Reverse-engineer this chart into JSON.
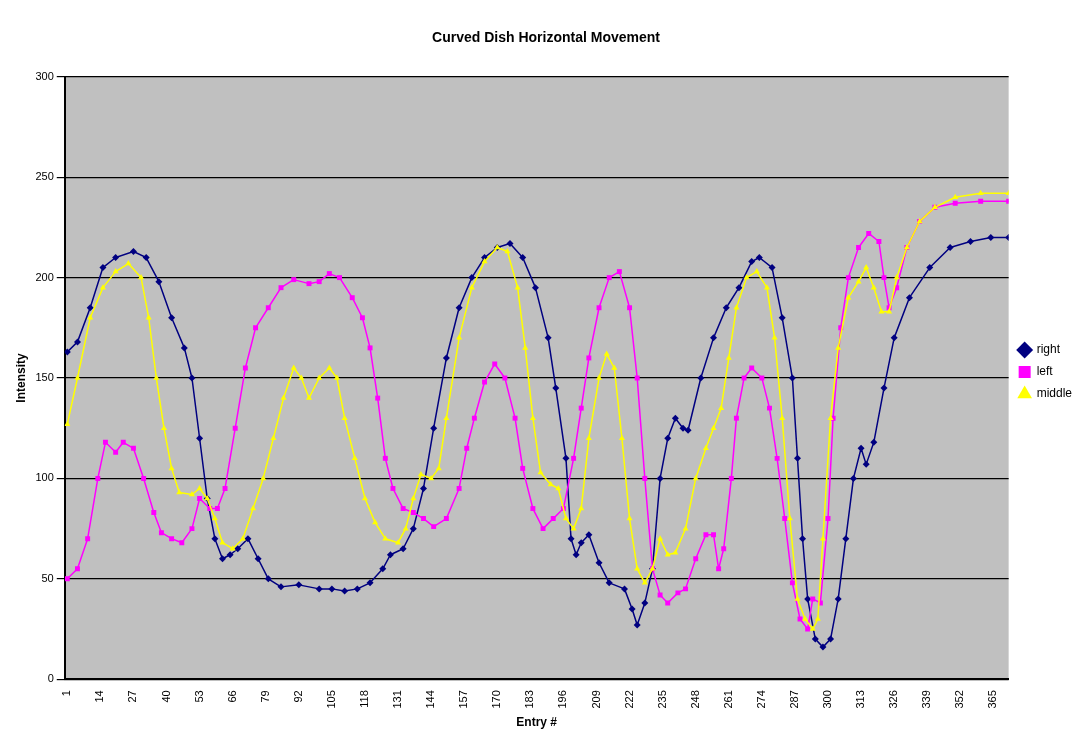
{
  "chart_data": {
    "type": "line",
    "title": "Curved Dish Horizontal Movement",
    "xlabel": "Entry #",
    "ylabel": "Intensity",
    "xlim": [
      0,
      371
    ],
    "xticks": [
      1,
      14,
      27,
      40,
      53,
      66,
      79,
      92,
      105,
      118,
      131,
      144,
      157,
      170,
      183,
      196,
      209,
      222,
      235,
      248,
      261,
      274,
      287,
      300,
      313,
      326,
      339,
      352,
      365
    ],
    "ylim": [
      0,
      300
    ],
    "yticks": [
      0,
      50,
      100,
      150,
      200,
      250,
      300
    ],
    "grid": "y",
    "legend": "right",
    "line_style": "solid",
    "series": [
      {
        "name": "right",
        "color": "#000080",
        "marker": "diamond",
        "x": [
          1,
          5,
          10,
          15,
          20,
          27,
          32,
          37,
          42,
          47,
          50,
          53,
          56,
          59,
          62,
          65,
          68,
          72,
          76,
          80,
          85,
          92,
          100,
          105,
          110,
          115,
          120,
          125,
          128,
          133,
          137,
          141,
          145,
          150,
          155,
          160,
          165,
          170,
          175,
          180,
          185,
          190,
          193,
          197,
          199,
          201,
          203,
          206,
          210,
          214,
          220,
          223,
          225,
          228,
          231,
          234,
          237,
          240,
          243,
          245,
          250,
          255,
          260,
          265,
          270,
          273,
          278,
          282,
          286,
          288,
          290,
          292,
          295,
          298,
          301,
          304,
          307,
          310,
          313,
          315,
          318,
          322,
          326,
          332,
          340,
          348,
          356,
          364,
          371
        ],
        "values": [
          163,
          168,
          185,
          205,
          210,
          213,
          210,
          198,
          180,
          165,
          150,
          120,
          90,
          70,
          60,
          62,
          65,
          70,
          60,
          50,
          46,
          47,
          45,
          45,
          44,
          45,
          48,
          55,
          62,
          65,
          75,
          95,
          125,
          160,
          185,
          200,
          210,
          215,
          217,
          210,
          195,
          170,
          145,
          110,
          70,
          62,
          68,
          72,
          58,
          48,
          45,
          35,
          27,
          38,
          55,
          100,
          120,
          130,
          125,
          124,
          150,
          170,
          185,
          195,
          208,
          210,
          205,
          180,
          150,
          110,
          70,
          40,
          20,
          16,
          20,
          40,
          70,
          100,
          115,
          107,
          118,
          145,
          170,
          190,
          205,
          215,
          218,
          220,
          220
        ]
      },
      {
        "name": "left",
        "color": "#ff00ff",
        "marker": "square",
        "x": [
          1,
          5,
          9,
          13,
          16,
          20,
          23,
          27,
          31,
          35,
          38,
          42,
          46,
          50,
          53,
          57,
          60,
          63,
          67,
          71,
          75,
          80,
          85,
          90,
          96,
          100,
          104,
          108,
          113,
          117,
          120,
          123,
          126,
          129,
          133,
          137,
          141,
          145,
          150,
          155,
          158,
          161,
          165,
          169,
          173,
          177,
          180,
          184,
          188,
          192,
          196,
          200,
          203,
          206,
          210,
          214,
          218,
          222,
          225,
          228,
          231,
          234,
          237,
          241,
          244,
          248,
          252,
          255,
          257,
          259,
          262,
          264,
          267,
          270,
          274,
          277,
          280,
          283,
          286,
          289,
          292,
          294,
          297,
          300,
          302,
          305,
          308,
          312,
          316,
          320,
          322,
          324,
          327,
          331,
          336,
          342,
          350,
          360,
          371
        ],
        "values": [
          50,
          55,
          70,
          100,
          118,
          113,
          118,
          115,
          100,
          83,
          73,
          70,
          68,
          75,
          90,
          85,
          85,
          95,
          125,
          155,
          175,
          185,
          195,
          199,
          197,
          198,
          202,
          200,
          190,
          180,
          165,
          140,
          110,
          95,
          85,
          83,
          80,
          76,
          80,
          95,
          115,
          130,
          148,
          157,
          150,
          130,
          105,
          85,
          75,
          80,
          85,
          110,
          135,
          160,
          185,
          200,
          203,
          185,
          150,
          100,
          55,
          42,
          38,
          43,
          45,
          60,
          72,
          72,
          55,
          65,
          100,
          130,
          150,
          155,
          150,
          135,
          110,
          80,
          48,
          30,
          25,
          40,
          38,
          80,
          130,
          175,
          200,
          215,
          222,
          218,
          200,
          185,
          195,
          215,
          228,
          235,
          237,
          238,
          238
        ]
      },
      {
        "name": "middle",
        "color": "#ffff00",
        "marker": "triangle",
        "x": [
          1,
          5,
          10,
          15,
          20,
          25,
          30,
          33,
          36,
          39,
          42,
          45,
          50,
          53,
          56,
          59,
          62,
          66,
          70,
          74,
          78,
          82,
          86,
          90,
          93,
          96,
          100,
          104,
          107,
          110,
          114,
          118,
          122,
          126,
          131,
          134,
          137,
          140,
          144,
          147,
          150,
          155,
          160,
          165,
          170,
          174,
          178,
          181,
          184,
          187,
          191,
          194,
          197,
          200,
          203,
          206,
          210,
          213,
          216,
          219,
          222,
          225,
          228,
          231,
          234,
          237,
          240,
          244,
          248,
          252,
          255,
          258,
          261,
          264,
          268,
          272,
          276,
          279,
          282,
          285,
          288,
          291,
          294,
          296,
          298,
          301,
          304,
          308,
          312,
          315,
          318,
          321,
          324,
          327,
          331,
          336,
          342,
          350,
          360,
          371
        ],
        "values": [
          127,
          150,
          180,
          195,
          203,
          207,
          200,
          180,
          150,
          125,
          105,
          93,
          92,
          95,
          90,
          80,
          68,
          65,
          70,
          85,
          100,
          120,
          140,
          155,
          150,
          140,
          150,
          155,
          150,
          130,
          110,
          90,
          78,
          70,
          68,
          75,
          90,
          102,
          100,
          105,
          130,
          170,
          195,
          208,
          215,
          213,
          195,
          165,
          130,
          103,
          97,
          95,
          80,
          75,
          85,
          120,
          150,
          162,
          155,
          120,
          80,
          55,
          48,
          55,
          70,
          62,
          63,
          75,
          100,
          115,
          125,
          135,
          160,
          185,
          200,
          203,
          195,
          170,
          130,
          80,
          40,
          30,
          25,
          30,
          70,
          130,
          165,
          190,
          198,
          205,
          195,
          183,
          183,
          200,
          215,
          228,
          235,
          240,
          242,
          242
        ]
      }
    ]
  }
}
